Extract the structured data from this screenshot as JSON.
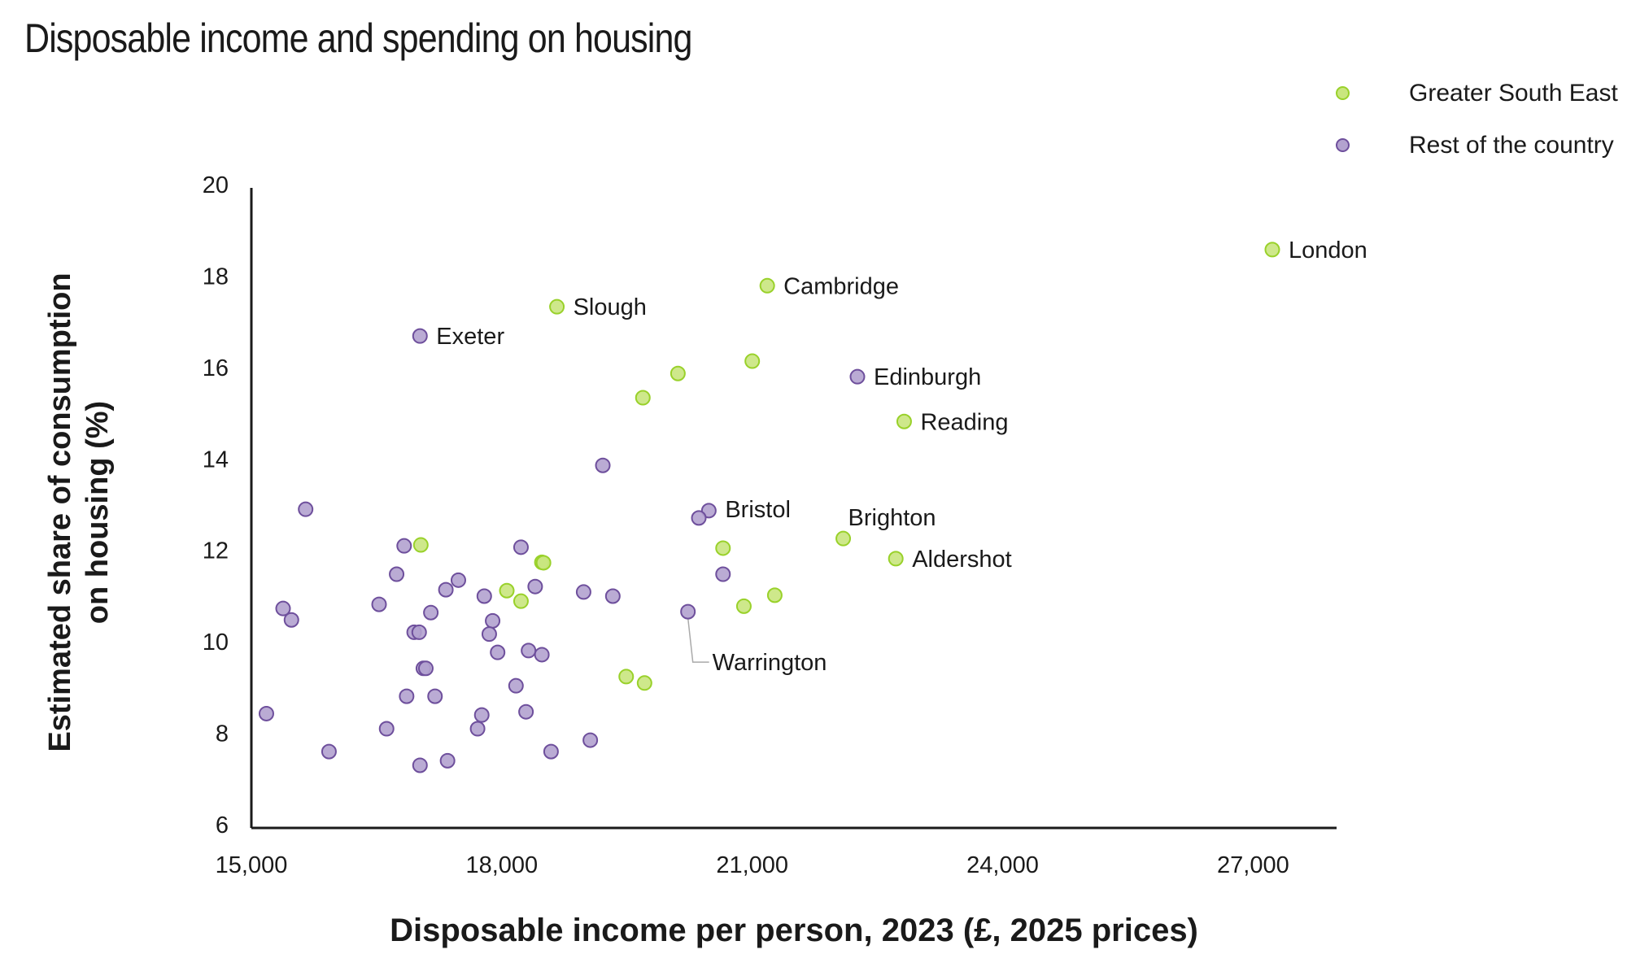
{
  "chart_data": {
    "type": "scatter",
    "title": "Disposable income and spending on housing",
    "xlabel": "Disposable income per person, 2023 (£, 2025 prices)",
    "ylabel": [
      "Estimated share of consumption",
      "on housing (%)"
    ],
    "xlim": [
      15000,
      28000
    ],
    "ylim": [
      6,
      20
    ],
    "xticks": [
      15000,
      18000,
      21000,
      24000,
      27000
    ],
    "xtick_labels": [
      "15,000",
      "18,000",
      "21,000",
      "24,000",
      "27,000"
    ],
    "yticks": [
      6,
      8,
      10,
      12,
      14,
      16,
      18,
      20
    ],
    "ytick_labels": [
      "6",
      "8",
      "10",
      "12",
      "14",
      "16",
      "18",
      "20"
    ],
    "grid": false,
    "legend_position": "top-right",
    "series": [
      {
        "name": "Greater South East",
        "color_fill": "#c9e67e",
        "color_stroke": "#99d12a",
        "points": [
          {
            "x": 27230,
            "y": 18.65,
            "label": "London"
          },
          {
            "x": 21180,
            "y": 17.86,
            "label": "Cambridge"
          },
          {
            "x": 18660,
            "y": 17.4,
            "label": "Slough"
          },
          {
            "x": 21000,
            "y": 16.21
          },
          {
            "x": 20110,
            "y": 15.94
          },
          {
            "x": 19690,
            "y": 15.41
          },
          {
            "x": 22820,
            "y": 14.89,
            "label": "Reading"
          },
          {
            "x": 22090,
            "y": 12.33,
            "label": "Brighton"
          },
          {
            "x": 22720,
            "y": 11.89,
            "label": "Aldershot"
          },
          {
            "x": 20650,
            "y": 12.12
          },
          {
            "x": 17030,
            "y": 12.19
          },
          {
            "x": 18480,
            "y": 11.81
          },
          {
            "x": 18500,
            "y": 11.8
          },
          {
            "x": 18060,
            "y": 11.19
          },
          {
            "x": 18230,
            "y": 10.96
          },
          {
            "x": 21270,
            "y": 11.09
          },
          {
            "x": 20900,
            "y": 10.85
          },
          {
            "x": 19490,
            "y": 9.31
          },
          {
            "x": 19710,
            "y": 9.17
          }
        ]
      },
      {
        "name": "Rest of the country",
        "color_fill": "#b3a2cf",
        "color_stroke": "#6e4f9c",
        "points": [
          {
            "x": 17020,
            "y": 16.76,
            "label": "Exeter"
          },
          {
            "x": 22260,
            "y": 15.87,
            "label": "Edinburgh"
          },
          {
            "x": 19210,
            "y": 13.93
          },
          {
            "x": 20480,
            "y": 12.94,
            "label": "Bristol"
          },
          {
            "x": 20360,
            "y": 12.78
          },
          {
            "x": 15650,
            "y": 12.97
          },
          {
            "x": 16830,
            "y": 12.17
          },
          {
            "x": 18230,
            "y": 12.14
          },
          {
            "x": 20650,
            "y": 11.55
          },
          {
            "x": 16740,
            "y": 11.55
          },
          {
            "x": 17480,
            "y": 11.42
          },
          {
            "x": 17330,
            "y": 11.21
          },
          {
            "x": 18400,
            "y": 11.28
          },
          {
            "x": 17790,
            "y": 11.07
          },
          {
            "x": 18980,
            "y": 11.16
          },
          {
            "x": 19330,
            "y": 11.07
          },
          {
            "x": 15380,
            "y": 10.8
          },
          {
            "x": 15480,
            "y": 10.55
          },
          {
            "x": 16530,
            "y": 10.89
          },
          {
            "x": 17150,
            "y": 10.71
          },
          {
            "x": 17890,
            "y": 10.53
          },
          {
            "x": 20230,
            "y": 10.73,
            "label": "Warrington"
          },
          {
            "x": 16950,
            "y": 10.28
          },
          {
            "x": 17010,
            "y": 10.28
          },
          {
            "x": 17850,
            "y": 10.24
          },
          {
            "x": 17950,
            "y": 9.84
          },
          {
            "x": 18320,
            "y": 9.88
          },
          {
            "x": 18480,
            "y": 9.79
          },
          {
            "x": 17060,
            "y": 9.49
          },
          {
            "x": 17090,
            "y": 9.49
          },
          {
            "x": 18170,
            "y": 9.11
          },
          {
            "x": 16860,
            "y": 8.88
          },
          {
            "x": 17200,
            "y": 8.88
          },
          {
            "x": 15180,
            "y": 8.5
          },
          {
            "x": 17760,
            "y": 8.47
          },
          {
            "x": 18290,
            "y": 8.54
          },
          {
            "x": 16620,
            "y": 8.17
          },
          {
            "x": 17710,
            "y": 8.17
          },
          {
            "x": 15930,
            "y": 7.67
          },
          {
            "x": 18590,
            "y": 7.67
          },
          {
            "x": 19060,
            "y": 7.92
          },
          {
            "x": 17020,
            "y": 7.37
          },
          {
            "x": 17350,
            "y": 7.47
          }
        ]
      }
    ]
  }
}
